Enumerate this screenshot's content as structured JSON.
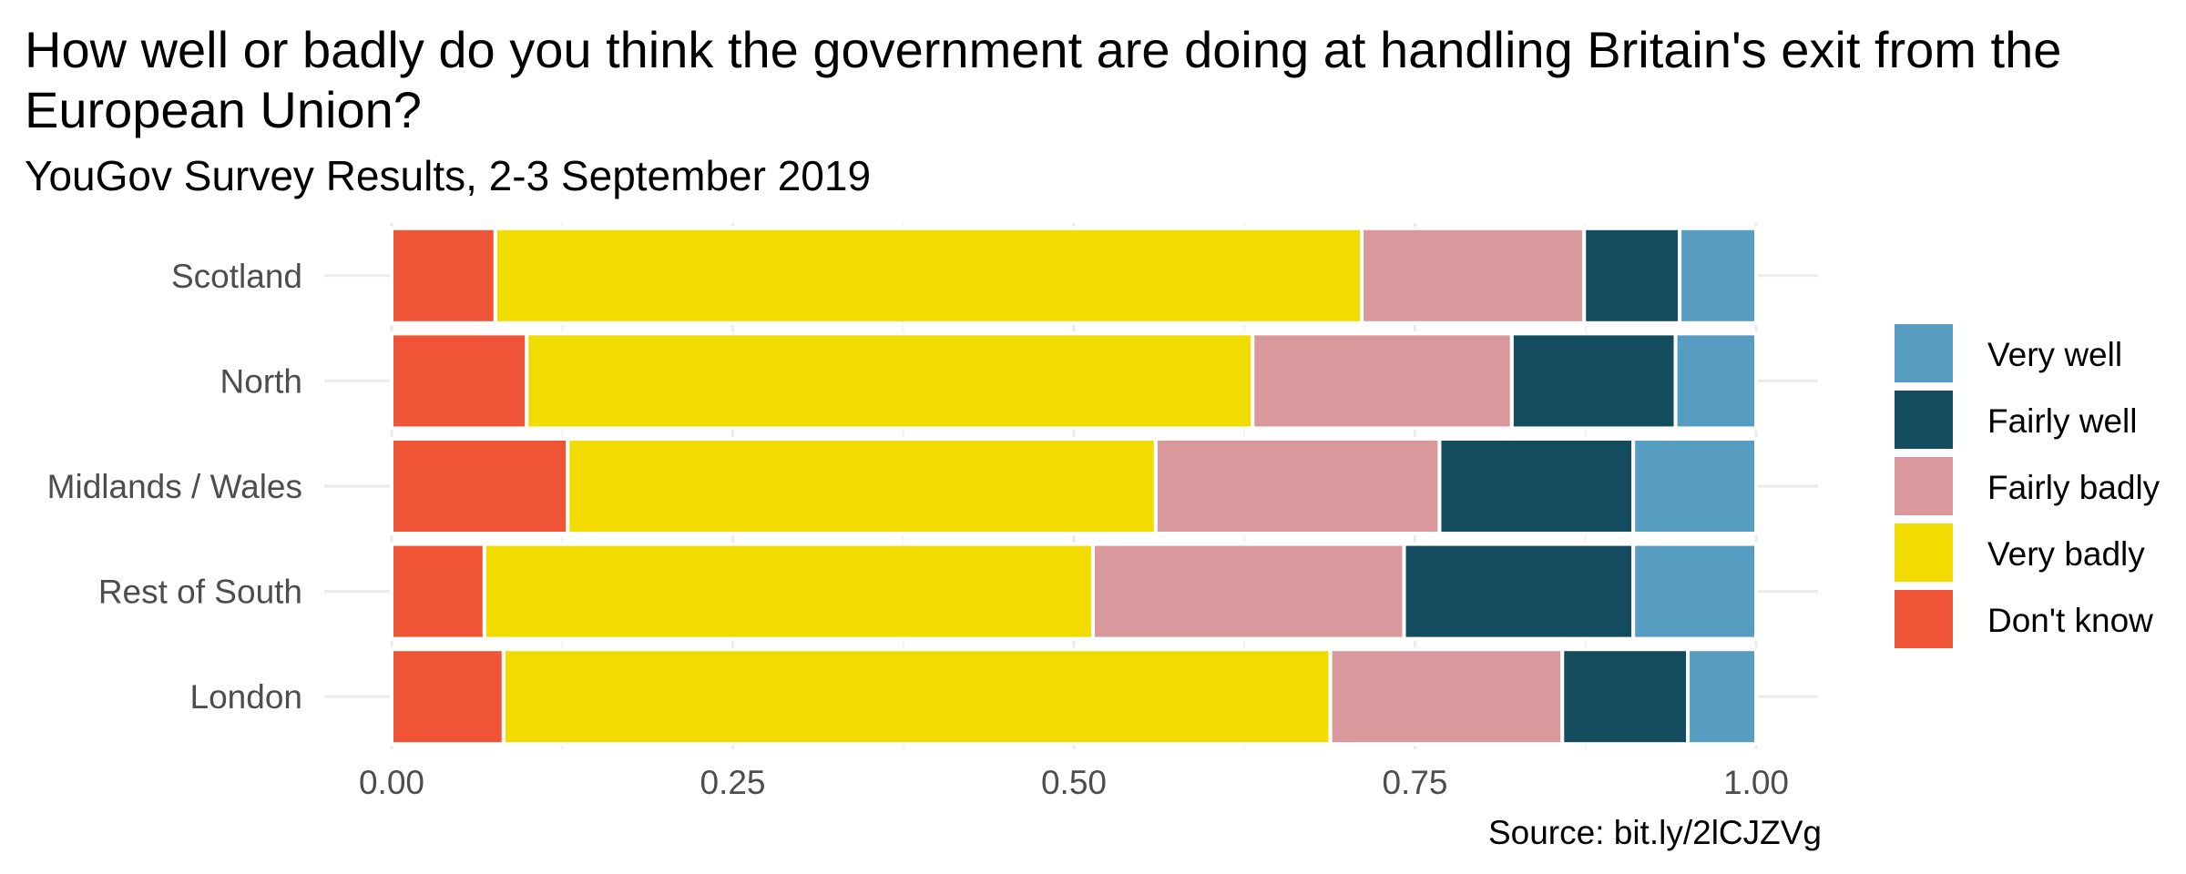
{
  "title": "How well or badly do you think the government are doing at handling Britain's exit from the European Union?",
  "subtitle": "YouGov Survey Results, 2-3 September 2019",
  "caption": "Source: bit.ly/2lCJZVg",
  "chart_data": {
    "type": "bar",
    "orientation": "horizontal",
    "stacked": true,
    "categories": [
      "Scotland",
      "North",
      "Midlands / Wales",
      "Rest of South",
      "London"
    ],
    "xlim": [
      0,
      1
    ],
    "x_ticks": [
      "0.00",
      "0.25",
      "0.50",
      "0.75",
      "1.00"
    ],
    "grid": true,
    "legend_position": "right",
    "series": [
      {
        "name": "Don't know",
        "color": "#F05436",
        "values": [
          0.076,
          0.099,
          0.129,
          0.068,
          0.082
        ]
      },
      {
        "name": "Very badly",
        "color": "#F2DC00",
        "values": [
          0.635,
          0.532,
          0.431,
          0.446,
          0.606
        ]
      },
      {
        "name": "Fairly badly",
        "color": "#D9989C",
        "values": [
          0.163,
          0.19,
          0.208,
          0.228,
          0.17
        ]
      },
      {
        "name": "Fairly well",
        "color": "#134B5F",
        "values": [
          0.07,
          0.12,
          0.142,
          0.168,
          0.092
        ]
      },
      {
        "name": "Very well",
        "color": "#579CC1",
        "values": [
          0.056,
          0.059,
          0.09,
          0.09,
          0.05
        ]
      }
    ],
    "legend_order": [
      "Very well",
      "Fairly well",
      "Fairly badly",
      "Very badly",
      "Don't know"
    ]
  }
}
